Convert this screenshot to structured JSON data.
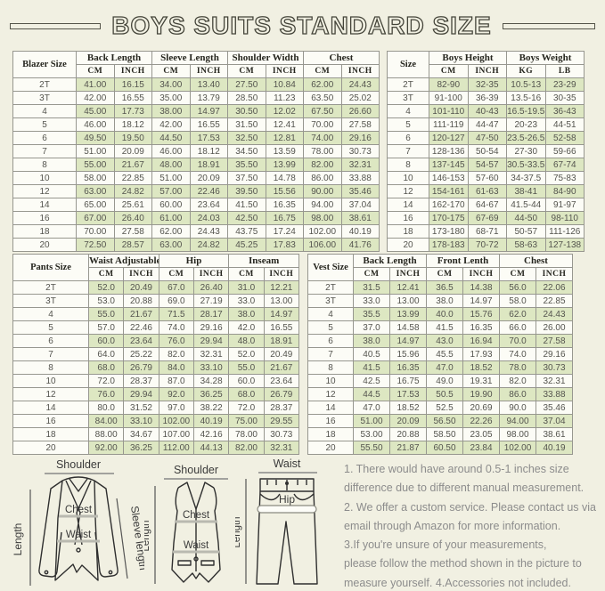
{
  "page": {
    "title": "BOYS SUITS STANDARD SIZE",
    "background_color": "#f1f0e2",
    "stripe_green": "#dde7c2"
  },
  "tables": {
    "blazer": {
      "corner": "Blazer Size",
      "groups": [
        "Back Length",
        "Sleeve Length",
        "Shoulder Width",
        "Chest"
      ],
      "units": [
        "CM",
        "INCH",
        "CM",
        "INCH",
        "CM",
        "INCH",
        "CM",
        "INCH"
      ],
      "rows": [
        {
          "size": "2T",
          "values": [
            "41.00",
            "16.15",
            "34.00",
            "13.40",
            "27.50",
            "10.84",
            "62.00",
            "24.43"
          ]
        },
        {
          "size": "3T",
          "values": [
            "42.00",
            "16.55",
            "35.00",
            "13.79",
            "28.50",
            "11.23",
            "63.50",
            "25.02"
          ]
        },
        {
          "size": "4",
          "values": [
            "45.00",
            "17.73",
            "38.00",
            "14.97",
            "30.50",
            "12.02",
            "67.50",
            "26.60"
          ]
        },
        {
          "size": "5",
          "values": [
            "46.00",
            "18.12",
            "42.00",
            "16.55",
            "31.50",
            "12.41",
            "70.00",
            "27.58"
          ]
        },
        {
          "size": "6",
          "values": [
            "49.50",
            "19.50",
            "44.50",
            "17.53",
            "32.50",
            "12.81",
            "74.00",
            "29.16"
          ]
        },
        {
          "size": "7",
          "values": [
            "51.00",
            "20.09",
            "46.00",
            "18.12",
            "34.50",
            "13.59",
            "78.00",
            "30.73"
          ]
        },
        {
          "size": "8",
          "values": [
            "55.00",
            "21.67",
            "48.00",
            "18.91",
            "35.50",
            "13.99",
            "82.00",
            "32.31"
          ]
        },
        {
          "size": "10",
          "values": [
            "58.00",
            "22.85",
            "51.00",
            "20.09",
            "37.50",
            "14.78",
            "86.00",
            "33.88"
          ]
        },
        {
          "size": "12",
          "values": [
            "63.00",
            "24.82",
            "57.00",
            "22.46",
            "39.50",
            "15.56",
            "90.00",
            "35.46"
          ]
        },
        {
          "size": "14",
          "values": [
            "65.00",
            "25.61",
            "60.00",
            "23.64",
            "41.50",
            "16.35",
            "94.00",
            "37.04"
          ]
        },
        {
          "size": "16",
          "values": [
            "67.00",
            "26.40",
            "61.00",
            "24.03",
            "42.50",
            "16.75",
            "98.00",
            "38.61"
          ]
        },
        {
          "size": "18",
          "values": [
            "70.00",
            "27.58",
            "62.00",
            "24.43",
            "43.75",
            "17.24",
            "102.00",
            "40.19"
          ]
        },
        {
          "size": "20",
          "values": [
            "72.50",
            "28.57",
            "63.00",
            "24.82",
            "45.25",
            "17.83",
            "106.00",
            "41.76"
          ]
        }
      ]
    },
    "body": {
      "corner": "Size",
      "groups": [
        "Boys Height",
        "Boys Weight"
      ],
      "units": [
        "CM",
        "INCH",
        "KG",
        "LB"
      ],
      "rows": [
        {
          "size": "2T",
          "values": [
            "82-90",
            "32-35",
            "10.5-13",
            "23-29"
          ]
        },
        {
          "size": "3T",
          "values": [
            "91-100",
            "36-39",
            "13.5-16",
            "30-35"
          ]
        },
        {
          "size": "4",
          "values": [
            "101-110",
            "40-43",
            "16.5-19.5",
            "36-43"
          ]
        },
        {
          "size": "5",
          "values": [
            "111-119",
            "44-47",
            "20-23",
            "44-51"
          ]
        },
        {
          "size": "6",
          "values": [
            "120-127",
            "47-50",
            "23.5-26.5",
            "52-58"
          ]
        },
        {
          "size": "7",
          "values": [
            "128-136",
            "50-54",
            "27-30",
            "59-66"
          ]
        },
        {
          "size": "8",
          "values": [
            "137-145",
            "54-57",
            "30.5-33.5",
            "67-74"
          ]
        },
        {
          "size": "10",
          "values": [
            "146-153",
            "57-60",
            "34-37.5",
            "75-83"
          ]
        },
        {
          "size": "12",
          "values": [
            "154-161",
            "61-63",
            "38-41",
            "84-90"
          ]
        },
        {
          "size": "14",
          "values": [
            "162-170",
            "64-67",
            "41.5-44",
            "91-97"
          ]
        },
        {
          "size": "16",
          "values": [
            "170-175",
            "67-69",
            "44-50",
            "98-110"
          ]
        },
        {
          "size": "18",
          "values": [
            "173-180",
            "68-71",
            "50-57",
            "111-126"
          ]
        },
        {
          "size": "20",
          "values": [
            "178-183",
            "70-72",
            "58-63",
            "127-138"
          ]
        }
      ]
    },
    "pants": {
      "corner": "Pants Size",
      "groups": [
        "Waist Adjustable",
        "Hip",
        "Inseam"
      ],
      "units": [
        "CM",
        "INCH",
        "CM",
        "INCH",
        "CM",
        "INCH"
      ],
      "rows": [
        {
          "size": "2T",
          "values": [
            "52.0",
            "20.49",
            "67.0",
            "26.40",
            "31.0",
            "12.21"
          ]
        },
        {
          "size": "3T",
          "values": [
            "53.0",
            "20.88",
            "69.0",
            "27.19",
            "33.0",
            "13.00"
          ]
        },
        {
          "size": "4",
          "values": [
            "55.0",
            "21.67",
            "71.5",
            "28.17",
            "38.0",
            "14.97"
          ]
        },
        {
          "size": "5",
          "values": [
            "57.0",
            "22.46",
            "74.0",
            "29.16",
            "42.0",
            "16.55"
          ]
        },
        {
          "size": "6",
          "values": [
            "60.0",
            "23.64",
            "76.0",
            "29.94",
            "48.0",
            "18.91"
          ]
        },
        {
          "size": "7",
          "values": [
            "64.0",
            "25.22",
            "82.0",
            "32.31",
            "52.0",
            "20.49"
          ]
        },
        {
          "size": "8",
          "values": [
            "68.0",
            "26.79",
            "84.0",
            "33.10",
            "55.0",
            "21.67"
          ]
        },
        {
          "size": "10",
          "values": [
            "72.0",
            "28.37",
            "87.0",
            "34.28",
            "60.0",
            "23.64"
          ]
        },
        {
          "size": "12",
          "values": [
            "76.0",
            "29.94",
            "92.0",
            "36.25",
            "68.0",
            "26.79"
          ]
        },
        {
          "size": "14",
          "values": [
            "80.0",
            "31.52",
            "97.0",
            "38.22",
            "72.0",
            "28.37"
          ]
        },
        {
          "size": "16",
          "values": [
            "84.00",
            "33.10",
            "102.00",
            "40.19",
            "75.00",
            "29.55"
          ]
        },
        {
          "size": "18",
          "values": [
            "88.00",
            "34.67",
            "107.00",
            "42.16",
            "78.00",
            "30.73"
          ]
        },
        {
          "size": "20",
          "values": [
            "92.00",
            "36.25",
            "112.00",
            "44.13",
            "82.00",
            "32.31"
          ]
        }
      ]
    },
    "vest": {
      "corner": "Vest Size",
      "groups": [
        "Back Length",
        "Front Lenth",
        "Chest"
      ],
      "units": [
        "CM",
        "INCH",
        "CM",
        "INCH",
        "CM",
        "INCH"
      ],
      "rows": [
        {
          "size": "2T",
          "values": [
            "31.5",
            "12.41",
            "36.5",
            "14.38",
            "56.0",
            "22.06"
          ]
        },
        {
          "size": "3T",
          "values": [
            "33.0",
            "13.00",
            "38.0",
            "14.97",
            "58.0",
            "22.85"
          ]
        },
        {
          "size": "4",
          "values": [
            "35.5",
            "13.99",
            "40.0",
            "15.76",
            "62.0",
            "24.43"
          ]
        },
        {
          "size": "5",
          "values": [
            "37.0",
            "14.58",
            "41.5",
            "16.35",
            "66.0",
            "26.00"
          ]
        },
        {
          "size": "6",
          "values": [
            "38.0",
            "14.97",
            "43.0",
            "16.94",
            "70.0",
            "27.58"
          ]
        },
        {
          "size": "7",
          "values": [
            "40.5",
            "15.96",
            "45.5",
            "17.93",
            "74.0",
            "29.16"
          ]
        },
        {
          "size": "8",
          "values": [
            "41.5",
            "16.35",
            "47.0",
            "18.52",
            "78.0",
            "30.73"
          ]
        },
        {
          "size": "10",
          "values": [
            "42.5",
            "16.75",
            "49.0",
            "19.31",
            "82.0",
            "32.31"
          ]
        },
        {
          "size": "12",
          "values": [
            "44.5",
            "17.53",
            "50.5",
            "19.90",
            "86.0",
            "33.88"
          ]
        },
        {
          "size": "14",
          "values": [
            "47.0",
            "18.52",
            "52.5",
            "20.69",
            "90.0",
            "35.46"
          ]
        },
        {
          "size": "16",
          "values": [
            "51.00",
            "20.09",
            "56.50",
            "22.26",
            "94.00",
            "37.04"
          ]
        },
        {
          "size": "18",
          "values": [
            "53.00",
            "20.88",
            "58.50",
            "23.05",
            "98.00",
            "38.61"
          ]
        },
        {
          "size": "20",
          "values": [
            "55.50",
            "21.87",
            "60.50",
            "23.84",
            "102.00",
            "40.19"
          ]
        }
      ]
    }
  },
  "diagrams": {
    "jacket": {
      "shoulder": "Shoulder",
      "length": "Length",
      "sleeve_length": "Sleeve length",
      "chest": "Chest",
      "waist": "Waist"
    },
    "vest": {
      "shoulder": "Shoulder",
      "length": "Length",
      "chest": "Chest",
      "waist": "Waist"
    },
    "pants": {
      "waist": "Waist",
      "hip": "Hip",
      "length": "Length"
    }
  },
  "notes": {
    "lines": [
      "1. There would have around 0.5-1 inches size",
      "difference due to different manual measurement.",
      "2. We offer a custom service. Please contact us via",
      "email through Amazon for more information.",
      "3.If you're unsure of your measurements,",
      "please follow the method shown in the picture to",
      "measure yourself. 4.Accessories not included."
    ]
  }
}
